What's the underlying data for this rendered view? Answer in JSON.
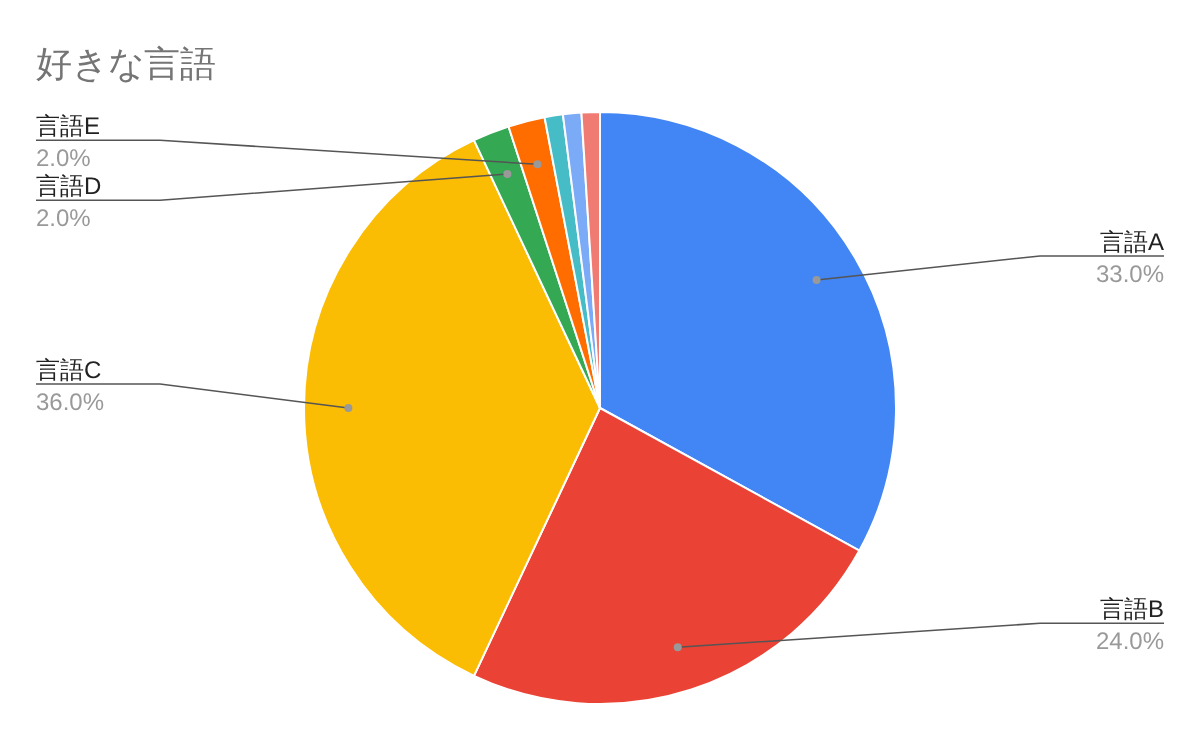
{
  "chart_data": {
    "type": "pie",
    "title": "好きな言語",
    "categories": [
      "言語A",
      "言語B",
      "言語C",
      "言語D",
      "言語E",
      null,
      null,
      null
    ],
    "values": [
      33,
      24,
      36,
      2,
      2,
      1,
      1,
      1
    ],
    "value_labels": [
      "33.0%",
      "24.0%",
      "36.0%",
      "2.0%",
      "2.0%",
      null,
      null,
      null
    ],
    "colors": [
      "#4285f4",
      "#ea4335",
      "#fbbc04",
      "#34a853",
      "#ff6d01",
      "#46bdc6",
      "#7baaf7",
      "#f07b72"
    ]
  }
}
